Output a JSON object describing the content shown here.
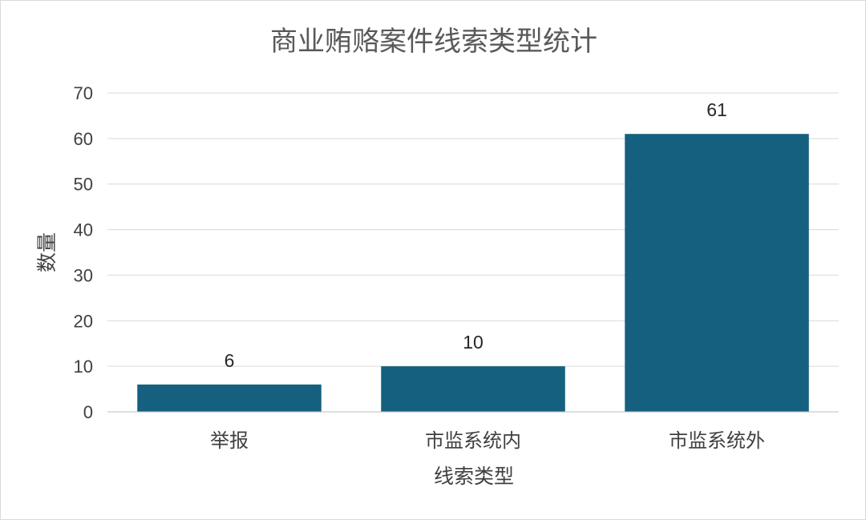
{
  "chart_data": {
    "type": "bar",
    "title": "商业贿赂案件线索类型统计",
    "xlabel": "线索类型",
    "ylabel": "数量",
    "categories": [
      "举报",
      "市监系统内",
      "市监系统外"
    ],
    "values": [
      6,
      10,
      61
    ],
    "ylim": [
      0,
      70
    ],
    "yticks": [
      0,
      10,
      20,
      30,
      40,
      50,
      60,
      70
    ],
    "grid": true,
    "legend": "none",
    "bar_color": "#16607f"
  }
}
